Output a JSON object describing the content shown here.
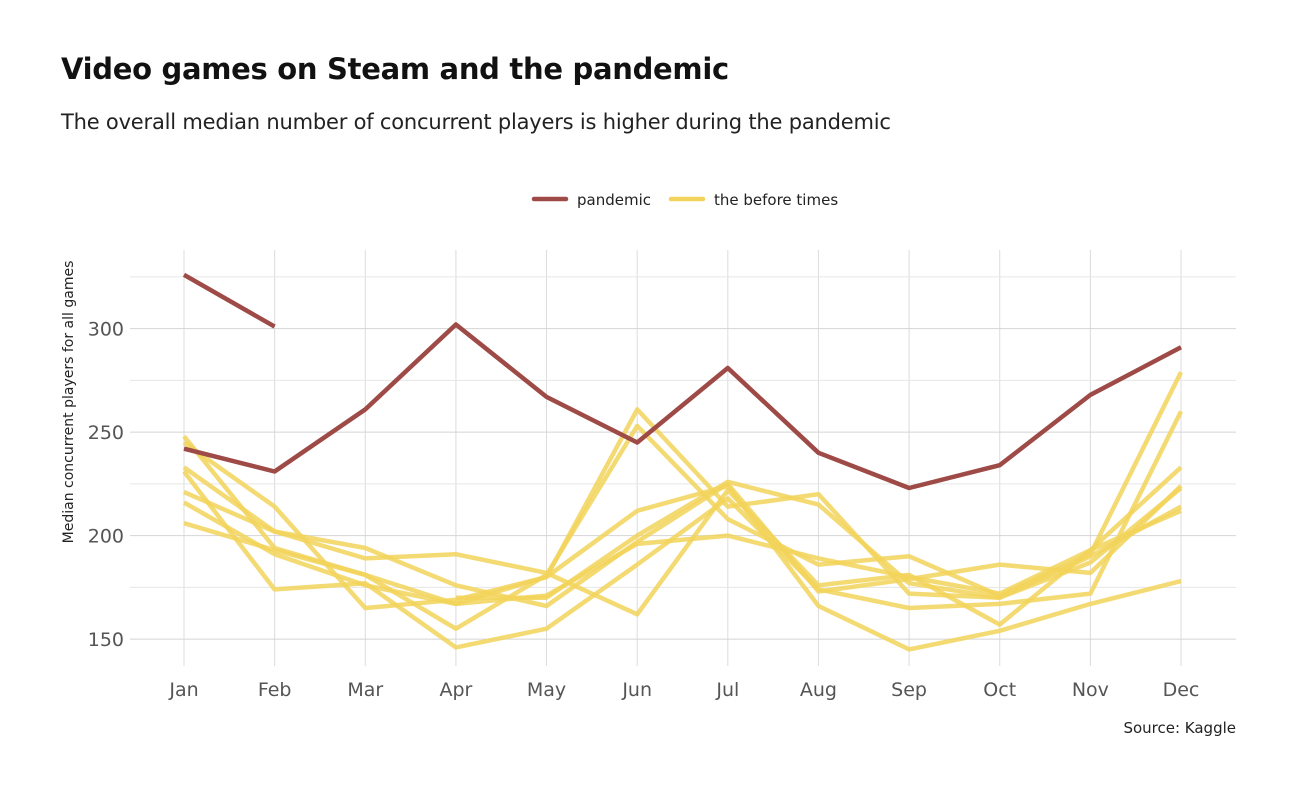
{
  "chart_data": {
    "type": "line",
    "title": "Video games on Steam and the pandemic",
    "subtitle": "The overall median number of concurrent players is higher during the pandemic",
    "caption": "Source: Kaggle",
    "xlabel": "",
    "ylabel": "Median concurrent players for all games",
    "categories": [
      "Jan",
      "Feb",
      "Mar",
      "Apr",
      "May",
      "Jun",
      "Jul",
      "Aug",
      "Sep",
      "Oct",
      "Nov",
      "Dec"
    ],
    "ylim": [
      137,
      338
    ],
    "yticks": [
      150,
      200,
      250,
      300
    ],
    "grid": true,
    "legend": {
      "position": "top",
      "entries": [
        {
          "label": "pandemic",
          "color": "#9e4a47"
        },
        {
          "label": "the before times",
          "color": "#f2d35b"
        }
      ]
    },
    "series": [
      {
        "group": "the before times",
        "color": "#f2d35b",
        "values": [
          216,
          191,
          176,
          167,
          180,
          212,
          224,
          166,
          145,
          154,
          167,
          178
        ]
      },
      {
        "group": "the before times",
        "color": "#f2d35b",
        "values": [
          248,
          194,
          181,
          155,
          181,
          253,
          208,
          186,
          190,
          171,
          191,
          279
        ]
      },
      {
        "group": "the before times",
        "color": "#f2d35b",
        "values": [
          221,
          202,
          189,
          191,
          182,
          162,
          222,
          176,
          181,
          157,
          193,
          233
        ]
      },
      {
        "group": "the before times",
        "color": "#f2d35b",
        "values": [
          233,
          202,
          194,
          176,
          166,
          197,
          225,
          173,
          179,
          186,
          182,
          224
        ]
      },
      {
        "group": "the before times",
        "color": "#f2d35b",
        "values": [
          206,
          193,
          181,
          167,
          171,
          196,
          200,
          189,
          180,
          172,
          193,
          212
        ]
      },
      {
        "group": "the before times",
        "color": "#f2d35b",
        "values": [
          231,
          174,
          177,
          146,
          155,
          186,
          218,
          174,
          165,
          167,
          172,
          260
        ]
      },
      {
        "group": "the before times",
        "color": "#f2d35b",
        "values": [
          245,
          214,
          165,
          169,
          180,
          261,
          214,
          220,
          172,
          170,
          190,
          214
        ]
      },
      {
        "group": "the before times",
        "color": "#f2d35b",
        "values": [
          null,
          null,
          null,
          170,
          170,
          200,
          226,
          215,
          177,
          170,
          187,
          223
        ]
      },
      {
        "group": "pandemic",
        "color": "#9e4a47",
        "values": [
          326,
          301,
          null,
          null,
          null,
          null,
          null,
          null,
          null,
          null,
          null,
          null
        ]
      },
      {
        "group": "pandemic",
        "color": "#9e4a47",
        "values": [
          242,
          231,
          261,
          302,
          267,
          245,
          281,
          240,
          223,
          234,
          268,
          291
        ]
      }
    ]
  }
}
